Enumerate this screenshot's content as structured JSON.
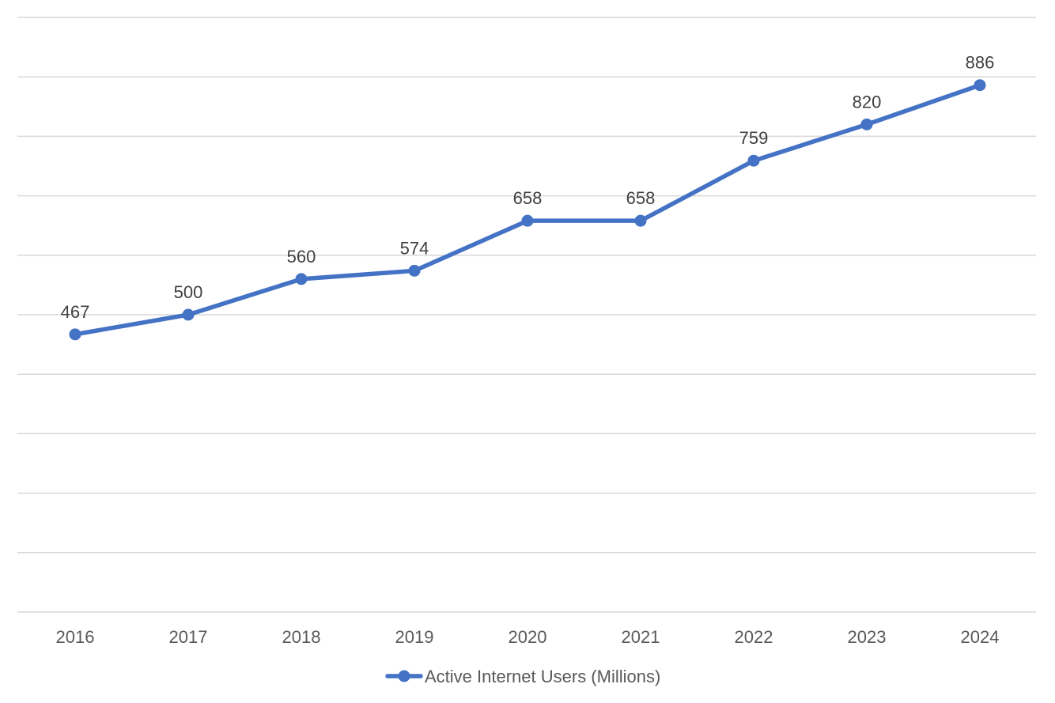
{
  "chart_data": {
    "type": "line",
    "categories": [
      "2016",
      "2017",
      "2018",
      "2019",
      "2020",
      "2021",
      "2022",
      "2023",
      "2024"
    ],
    "series": [
      {
        "name": "Active Internet Users (Millions)",
        "values": [
          467,
          500,
          560,
          574,
          658,
          658,
          759,
          820,
          886
        ],
        "color": "#4472c4"
      }
    ],
    "ylim": [
      0,
      1000
    ],
    "y_gridline_step": 100,
    "y_axis_labels_shown": false,
    "data_labels": true,
    "grid": true,
    "legend_position": "bottom"
  }
}
